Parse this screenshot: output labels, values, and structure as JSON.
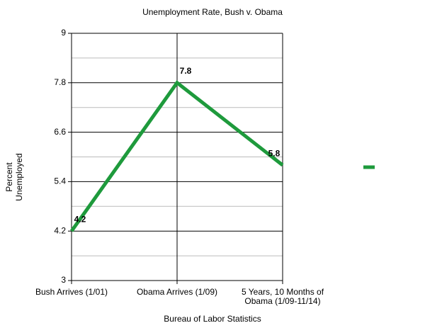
{
  "chart_data": {
    "type": "line",
    "title": "Unemployment Rate, Bush v. Obama",
    "x_label": "Bureau of Labor Statistics",
    "y_label": "Percent Unemployed",
    "categories": [
      "Bush Arrives (1/01)",
      "Obama Arrives (1/09)",
      "5 Years, 10 Months of Obama (1/09-11/14)"
    ],
    "series": [
      {
        "color": "#1e9a3c",
        "values": [
          4.2,
          7.8,
          5.8
        ]
      }
    ],
    "ylim": [
      3,
      9
    ],
    "yticks": [
      3,
      4.2,
      5.4,
      6.6,
      7.8,
      9
    ],
    "grid": true
  }
}
